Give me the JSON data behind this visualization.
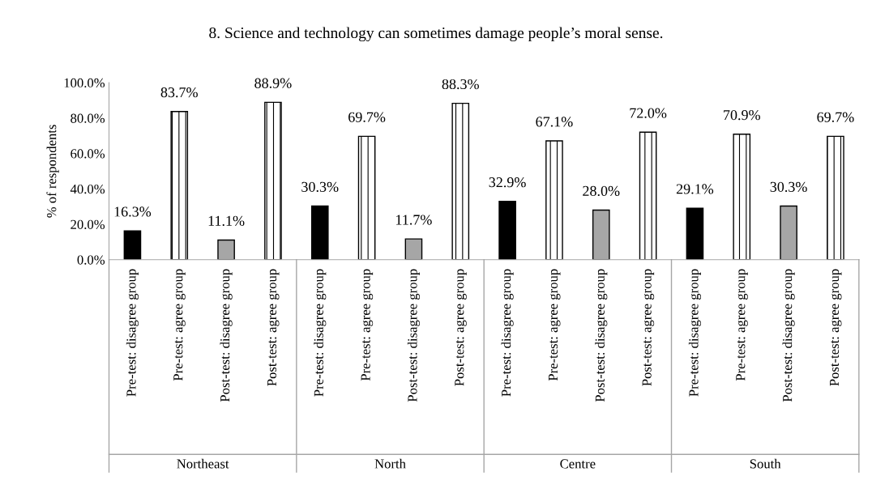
{
  "chart_data": {
    "type": "bar",
    "title": "8. Science and technology can sometimes damage people’s moral sense.",
    "ylabel": "% of respondents",
    "categories": [
      "Pre-test: disagree group",
      "Pre-test: agree group",
      "Post-test: disagree group",
      "Post-test: agree group",
      "Pre-test: disagree group",
      "Pre-test: agree group",
      "Post-test: disagree group",
      "Post-test: agree group",
      "Pre-test: disagree group",
      "Pre-test: agree group",
      "Post-test: disagree group",
      "Post-test: agree group",
      "Pre-test: disagree group",
      "Pre-test: agree group",
      "Post-test: disagree group",
      "Post-test: agree group"
    ],
    "values": [
      16.3,
      83.7,
      11.1,
      88.9,
      30.3,
      69.7,
      11.7,
      88.3,
      32.9,
      67.1,
      28.0,
      72.0,
      29.1,
      70.9,
      30.3,
      69.7
    ],
    "value_labels": [
      "16.3%",
      "83.7%",
      "11.1%",
      "88.9%",
      "30.3%",
      "69.7%",
      "11.7%",
      "88.3%",
      "32.9%",
      "67.1%",
      "28.0%",
      "72.0%",
      "29.1%",
      "70.9%",
      "30.3%",
      "69.7%"
    ],
    "colors": [
      "#000000",
      "#ffffff",
      "#a6a6a6",
      "#ffffff",
      "#000000",
      "#ffffff",
      "#a6a6a6",
      "#ffffff",
      "#000000",
      "#ffffff",
      "#a6a6a6",
      "#ffffff",
      "#000000",
      "#ffffff",
      "#a6a6a6",
      "#ffffff"
    ],
    "annotations": [
      "Northeast",
      "North",
      "Centre",
      "South"
    ],
    "ylim": [
      0,
      100
    ],
    "yticks": [
      {
        "value": 0,
        "label": "0.0%"
      },
      {
        "value": 20,
        "label": "20.0%"
      },
      {
        "value": 40,
        "label": "40.0%"
      },
      {
        "value": 60,
        "label": "60.0%"
      },
      {
        "value": 80,
        "label": "80.0%"
      },
      {
        "value": 100,
        "label": "100.0%"
      }
    ],
    "grid": false,
    "legend": false
  }
}
